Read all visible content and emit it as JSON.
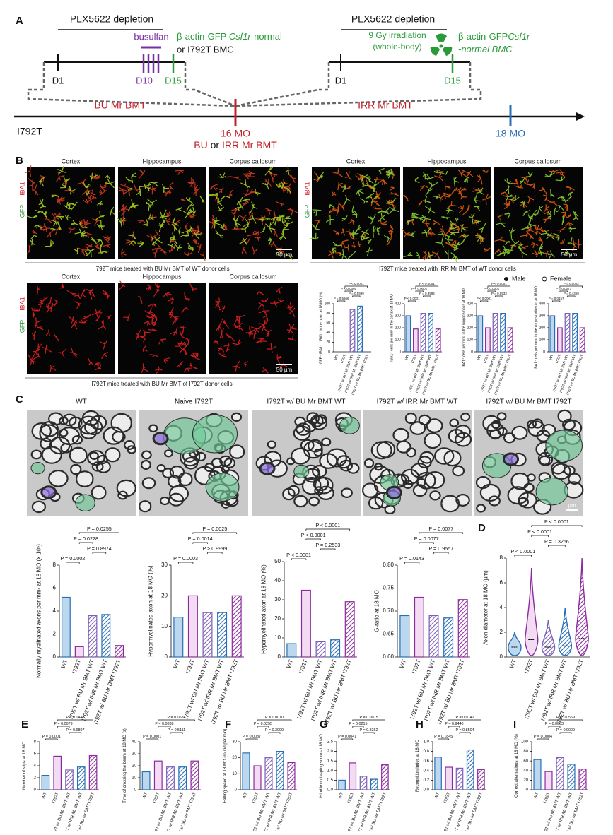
{
  "figure": {
    "panel_labels": [
      "A",
      "B",
      "C",
      "D",
      "E",
      "F",
      "G",
      "H",
      "I"
    ],
    "timeline": {
      "left_depletion": "PLX5622 depletion",
      "right_depletion": "PLX5622 depletion",
      "busulfan": "busulfan",
      "bu_donor": [
        "β-actin-GFP ",
        "Csf1r",
        "-normal"
      ],
      "bu_donor_2": "or I792T BMC",
      "irradiation": [
        "9 Gy irradiation",
        "(whole-body)"
      ],
      "irr_donor": [
        "β-actin-GFP",
        "Csf1r",
        "-normal BMC"
      ],
      "left_days": [
        "D1",
        "D10",
        "D15"
      ],
      "right_days": [
        "D1",
        "D15"
      ],
      "bu_label": "BU Mr BMT",
      "irr_label": "IRR Mr BMT",
      "strain": "I792T",
      "age_16": "16 MO",
      "age_16_bu": "BU",
      "age_16_or": " or ",
      "age_16_irr": "IRR Mr BMT",
      "age_18": "18 MO"
    },
    "microglia": {
      "regions": [
        "Cortex",
        "Hippocampus",
        "Corpus callosum"
      ],
      "stain_iba1": "IBA1",
      "stain_gfp": "GFP",
      "scale": "50 µm",
      "captions": [
        "I792T mice treated with BU Mr BMT of WT donor cells",
        "I792T mice treated with IRR Mr BMT of WT donor cells",
        "I792T mice treated with BU Mr BMT of I792T donor cells"
      ],
      "legend": [
        "Male",
        "Female"
      ]
    },
    "em": {
      "titles": [
        "WT",
        "Naive I792T",
        "I792T w/ BU Mr BMT WT",
        "I792T w/ IRR Mr BMT WT",
        "I792T w/ BU Mr BMT I792T"
      ],
      "scale": "µm"
    },
    "group_fills": [
      "#bcd8ef",
      "#f3dcf3",
      "#ffffff",
      "#ffffff",
      "#ffffff"
    ],
    "group_edges": [
      "#2a6fb5",
      "#8b2c9c",
      "#7b5fb5",
      "#2a6fb5",
      "#8b2c9c"
    ],
    "group_hatched": [
      false,
      false,
      true,
      true,
      true
    ]
  },
  "chart_data": [
    {
      "type": "bar",
      "ylabel": "GFP⁺ IBA1⁺ / IBA1⁺ in the brain at 18 MO (%)",
      "categories": [
        "WT",
        "I792T",
        "I792T w/ BU Mr BMT WT",
        "I792T w/ IRR Mr BMT WT",
        "I792T w/ BU Mr BMT I792T"
      ],
      "values": [
        0,
        0,
        88,
        95,
        0
      ],
      "ylim": [
        0,
        100
      ],
      "yticks": [
        0,
        20,
        40,
        60,
        80,
        100
      ],
      "annotations": [
        "P = 0.5966",
        "P = 0.5999",
        "P < 0.0001",
        "P < 0.0001"
      ]
    },
    {
      "type": "bar",
      "ylabel": "IBA1⁺ cells per mm² in the cortex at 18 MO",
      "categories": [
        "WT",
        "I792T",
        "I792T w/ BU Mr BMT WT",
        "I792T w/ IRR Mr BMT WT",
        "I792T w/ BU Mr BMT I792T"
      ],
      "values": [
        300,
        190,
        320,
        320,
        190
      ],
      "ylim": [
        0,
        400
      ],
      "yticks": [
        0,
        100,
        200,
        300,
        400
      ],
      "annotations": [
        "P < 0.0001",
        "P = 0.9994",
        "P < 0.0001",
        "P < 0.0001"
      ]
    },
    {
      "type": "bar",
      "ylabel": "IBA1⁺ cells per mm² in the hippocampus at 18 MO",
      "categories": [
        "WT",
        "I792T",
        "I792T w/ BU Mr BMT WT",
        "I792T w/ IRR Mr BMT WT",
        "I792T w/ BU Mr BMT I792T"
      ],
      "values": [
        300,
        200,
        320,
        320,
        200
      ],
      "ylim": [
        0,
        400
      ],
      "yticks": [
        0,
        100,
        200,
        300,
        400
      ],
      "annotations": [
        "P < 0.0001",
        "P = 0.9933",
        "P < 0.0001",
        "P < 0.0001"
      ]
    },
    {
      "type": "bar",
      "ylabel": "IBA1⁺ cells per mm² in the corpus callosum at 18 MO",
      "categories": [
        "WT",
        "I792T",
        "I792T w/ BU Mr BMT WT",
        "I792T w/ IRR Mr BMT WT",
        "I792T w/ BU Mr BMT I792T"
      ],
      "values": [
        300,
        200,
        320,
        320,
        200
      ],
      "ylim": [
        0,
        400
      ],
      "yticks": [
        0,
        100,
        200,
        300,
        400
      ],
      "annotations": [
        "P = 0.0157",
        "P = 0.4369",
        "P = 0.0077",
        "P = 0.0002"
      ]
    },
    {
      "type": "bar",
      "ylabel": "Normally myelinated axons per mm² at 18 MO (× 10⁵)",
      "categories": [
        "WT",
        "I792T",
        "I792T w/ BU Mr BMT WT",
        "I792T w/ IRR Mr BMT WT",
        "I792T w/ BU Mr BMT I792T"
      ],
      "values": [
        5.2,
        0.9,
        3.6,
        3.7,
        1.0
      ],
      "ylim": [
        0,
        8
      ],
      "yticks": [
        0,
        2,
        4,
        6,
        8
      ],
      "annotations": [
        "P = 0.0002",
        "P = 0.8974",
        "P = 0.0228",
        "P = 0.0255"
      ]
    },
    {
      "type": "bar",
      "ylabel": "Hypermyelinated axon at 18 MO (%)",
      "categories": [
        "WT",
        "I792T",
        "I792T w/ BU Mr BMT WT",
        "I792T w/ IRR Mr BMT WT",
        "I792T w/ BU Mr BMT I792T"
      ],
      "values": [
        13,
        20,
        14.5,
        14.5,
        20
      ],
      "ylim": [
        0,
        30
      ],
      "yticks": [
        0,
        10,
        20,
        30
      ],
      "annotations": [
        "P = 0.0003",
        "P > 0.9999",
        "P = 0.0014",
        "P = 0.0025"
      ]
    },
    {
      "type": "bar",
      "ylabel": "Hypomyelinated axon at 18 MO (%)",
      "categories": [
        "WT",
        "I792T",
        "I792T w/ BU Mr BMT WT",
        "I792T w/ IRR Mr BMT WT",
        "I792T w/ BU Mr BMT I792T"
      ],
      "values": [
        7,
        35,
        8,
        9,
        29
      ],
      "ylim": [
        0,
        50
      ],
      "yticks": [
        0,
        10,
        20,
        30,
        40,
        50
      ],
      "annotations": [
        "P < 0.0001",
        "P = 0.2533",
        "P < 0.0001",
        "P < 0.0001"
      ]
    },
    {
      "type": "bar",
      "ylabel": "G-ratio at 18 MO",
      "categories": [
        "WT",
        "I792T",
        "I792T w/ BU Mr BMT WT",
        "I792T w/ IRR Mr BMT WT",
        "I792T w/ BU Mr BMT I792T"
      ],
      "values": [
        0.69,
        0.73,
        0.69,
        0.685,
        0.725
      ],
      "ylim": [
        0.6,
        0.8
      ],
      "yticks": [
        {
          "value": 0.6,
          "label": "0.60"
        },
        0.65,
        {
          "value": 0.7,
          "label": "0.70"
        },
        0.75,
        {
          "value": 0.8,
          "label": "0.80"
        }
      ],
      "annotations": [
        "P = 0.0143",
        "P = 0.9557",
        "P = 0.0077",
        "P = 0.0077"
      ]
    },
    {
      "type": "violin",
      "ylabel": "Axon diameter at 18 MO (µm)",
      "categories": [
        "WT",
        "I792T",
        "I792T w/ BU Mr BMT WT",
        "I792T w/ IRR Mr BMT WT",
        "I792T w/ BU Mr BMT I792T"
      ],
      "values": [
        0.8,
        1.4,
        0.8,
        0.9,
        1.5
      ],
      "max": [
        2.0,
        7.2,
        3.0,
        4.0,
        8.0
      ],
      "ylim": [
        0,
        8
      ],
      "yticks": [
        0,
        2,
        4,
        6,
        8
      ],
      "annotations": [
        "P < 0.0001",
        "P = 0.3256",
        "P < 0.0001",
        "P < 0.0001"
      ]
    },
    {
      "type": "bar",
      "ylabel": "Number of slips at 18 MO",
      "categories": [
        "WT",
        "I792T",
        "I792T w/ BU Mr BMT WT",
        "I792T w/ IRR Mr BMT WT",
        "I792T w/ BU Mr BMT I792T"
      ],
      "values": [
        2.4,
        5.6,
        3.3,
        3.8,
        5.7
      ],
      "ylim": [
        0,
        8
      ],
      "yticks": [
        0,
        2,
        4,
        6,
        8
      ],
      "annotations": [
        "P = 0.0001",
        "P = 0.6897",
        "P = 0.0079",
        "P = 0.0445"
      ]
    },
    {
      "type": "bar",
      "ylabel": "Time of crossing the beam at 18 MO (s)",
      "categories": [
        "WT",
        "I792T",
        "I792T w/ BU Mr BMT WT",
        "I792T w/ IRR Mr BMT WT",
        "I792T w/ BU Mr BMT I792T"
      ],
      "values": [
        15,
        24,
        19,
        19,
        24
      ],
      "ylim": [
        0,
        40
      ],
      "yticks": [
        0,
        10,
        20,
        30,
        40
      ],
      "annotations": [
        "P = 0.0001",
        "P = 0.5111",
        "P = 0.0838",
        "P = 0.0684"
      ]
    },
    {
      "type": "bar",
      "ylabel": "Falling speed at 18 MO (round per min)",
      "categories": [
        "WT",
        "I792T",
        "I792T w/ BU Mr BMT WT",
        "I792T w/ IRR Mr BMT WT",
        "I792T w/ BU Mr BMT I792T"
      ],
      "values": [
        23,
        15,
        20,
        24,
        17
      ],
      "ylim": [
        0,
        30
      ],
      "yticks": [
        0,
        10,
        20,
        30
      ],
      "annotations": [
        "P = 0.0037",
        "P = 0.3999",
        "P = 0.0255",
        "P = 0.0010"
      ]
    },
    {
      "type": "bar",
      "ylabel": "Hindlimb clasping score at 18 MO",
      "categories": [
        "WT",
        "I792T",
        "I792T w/ BU Mr BMT WT",
        "I792T w/ IRR Mr BMT WT",
        "I792T w/ BU Mr BMT I792T"
      ],
      "values": [
        0.5,
        1.4,
        0.7,
        0.55,
        1.3
      ],
      "ylim": [
        0,
        2.5
      ],
      "yticks": [
        {
          "value": 0,
          "label": "0.0"
        },
        0.5,
        {
          "value": 1,
          "label": "1.0"
        },
        1.5,
        {
          "value": 2,
          "label": "2.0"
        },
        2.5
      ],
      "annotations": [
        "P = 0.0041",
        "P = 0.8362",
        "P = 0.0215",
        "P = 0.0075"
      ]
    },
    {
      "type": "bar",
      "ylabel": "Recognition index at 18 MO",
      "categories": [
        "WT",
        "I792T",
        "I792T w/ BU Mr BMT WT",
        "I792T w/ IRR Mr BMT WT",
        "I792T w/ BU Mr BMT I792T"
      ],
      "values": [
        0.68,
        0.47,
        0.45,
        0.83,
        0.42
      ],
      "ylim": [
        0,
        1
      ],
      "yticks": [
        {
          "value": 0,
          "label": "0.0"
        },
        0.2,
        0.4,
        0.6,
        0.8,
        {
          "value": 1,
          "label": "1.0"
        }
      ],
      "annotations": [
        "P = 0.1845",
        "P = 0.8504",
        "P = 0.9440",
        "P = 0.0142"
      ]
    },
    {
      "type": "bar",
      "ylabel": "Correct alternations at 18 MO (%)",
      "categories": [
        "WT",
        "I792T",
        "I792T w/ BU Mr BMT WT",
        "I792T w/ IRR Mr BMT WT",
        "I792T w/ BU Mr BMT I792T"
      ],
      "values": [
        63,
        38,
        67,
        53,
        43
      ],
      "ylim": [
        0,
        100
      ],
      "yticks": [
        0,
        20,
        40,
        60,
        80,
        100
      ],
      "annotations": [
        "P = 0.0004",
        "P = 0.9009",
        "P = 0.0003",
        "P = 0.0569"
      ]
    }
  ]
}
